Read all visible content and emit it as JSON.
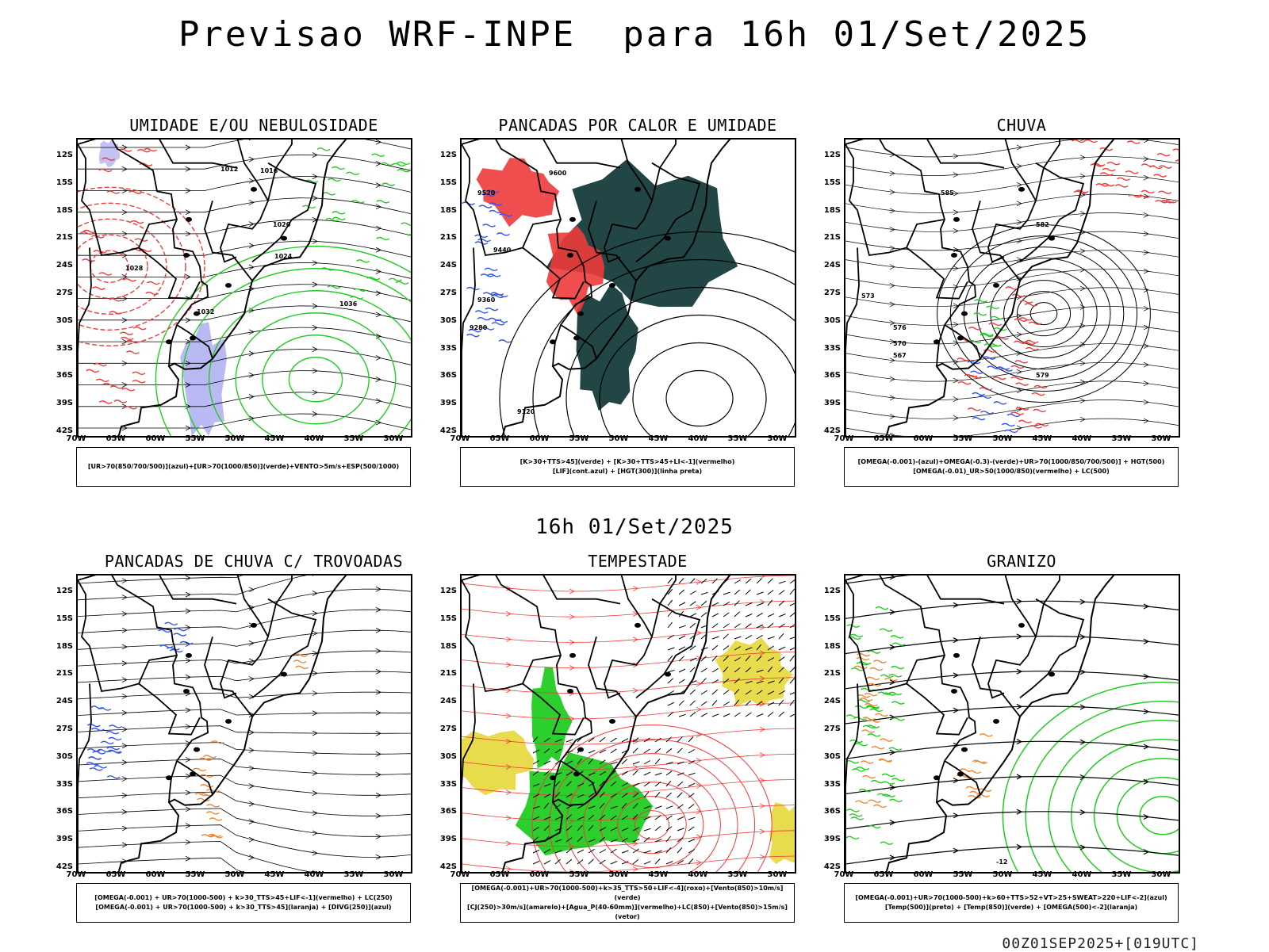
{
  "header": {
    "title": "Previsao WRF-INPE  para 16h 01/Set/2025",
    "mid_title": "16h 01/Set/2025",
    "footer": "00Z01SEP2025+[019UTC]"
  },
  "axes": {
    "lat_labels": [
      "12S",
      "15S",
      "18S",
      "21S",
      "24S",
      "27S",
      "30S",
      "33S",
      "36S",
      "39S",
      "42S"
    ],
    "lon_labels": [
      "70W",
      "65W",
      "60W",
      "55W",
      "50W",
      "45W",
      "40W",
      "35W",
      "30W"
    ]
  },
  "colors": {
    "red": "#ee3b3b",
    "green": "#22cc22",
    "blue": "#3355ee",
    "lavender": "#a8a8f0",
    "darkteal": "#163c3c",
    "yellow": "#e6d83a",
    "orange": "#ee8833"
  },
  "panels": [
    {
      "title": "UMIDADE E/OU NEBULOSIDADE",
      "legend": [
        "[UR>70(850/700/500)](azul)+[UR>70(1000/850)](verde)+VENTO>5m/s+ESP(500/1000)"
      ],
      "contour_labels": [
        "1012",
        "1016",
        "1020",
        "1024",
        "1028",
        "1032",
        "1036"
      ]
    },
    {
      "title": "PANCADAS POR CALOR E UMIDADE",
      "legend": [
        "[K>30+TTS>45](verde) + [K>30+TTS>45+LI<-1](vermelho)",
        "[LIF](cont.azul) + [HGT(300)](linha preta)"
      ],
      "contour_labels": [
        "9600",
        "9520",
        "9440",
        "9360",
        "9280",
        "9120"
      ]
    },
    {
      "title": "CHUVA",
      "legend": [
        "[OMEGA(-0.001)-(azul)+OMEGA(-0.3)-(verde)+UR>70(1000/850/700/500)] + HGT(500)",
        "[OMEGA(-0.01)_UR>50(1000/850)(vermelho) + LC(500)"
      ],
      "contour_labels": [
        "585",
        "582",
        "579",
        "576",
        "573",
        "570",
        "567"
      ]
    },
    {
      "title": "PANCADAS DE CHUVA C/ TROVOADAS",
      "legend": [
        "[OMEGA(-0.001) + UR>70(1000-500) + k>30_TTS>45+LIF<-1](vermelho) + LC(250)",
        "[OMEGA(-0.001) + UR>70(1000-500) + k>30_TTS>45](laranja) + [DIVG(250)](azul)"
      ],
      "contour_labels": []
    },
    {
      "title": "TEMPESTADE",
      "legend": [
        "[OMEGA(-0.001)+UR>70(1000-500)+k>35_TTS>50+LIF<-4](roxo)+[Vento(850)>10m/s](verde)",
        "[CJ(250)>30m/s](amarelo)+[Agua_P(40-60mm)](vermelho)+LC(850)+[Vento(850)>15m/s](vetor)"
      ],
      "contour_labels": []
    },
    {
      "title": "GRANIZO",
      "legend": [
        "[OMEGA(-0.001)+UR>70(1000-500)+k>60+TTS>52+VT>25+SWEAT>220+LIF<-2](azul)",
        "[Temp(500)](preto) + [Temp(850)](verde) + [OMEGA(500)<-2](laranja)"
      ],
      "contour_labels": [
        "-12"
      ]
    }
  ]
}
